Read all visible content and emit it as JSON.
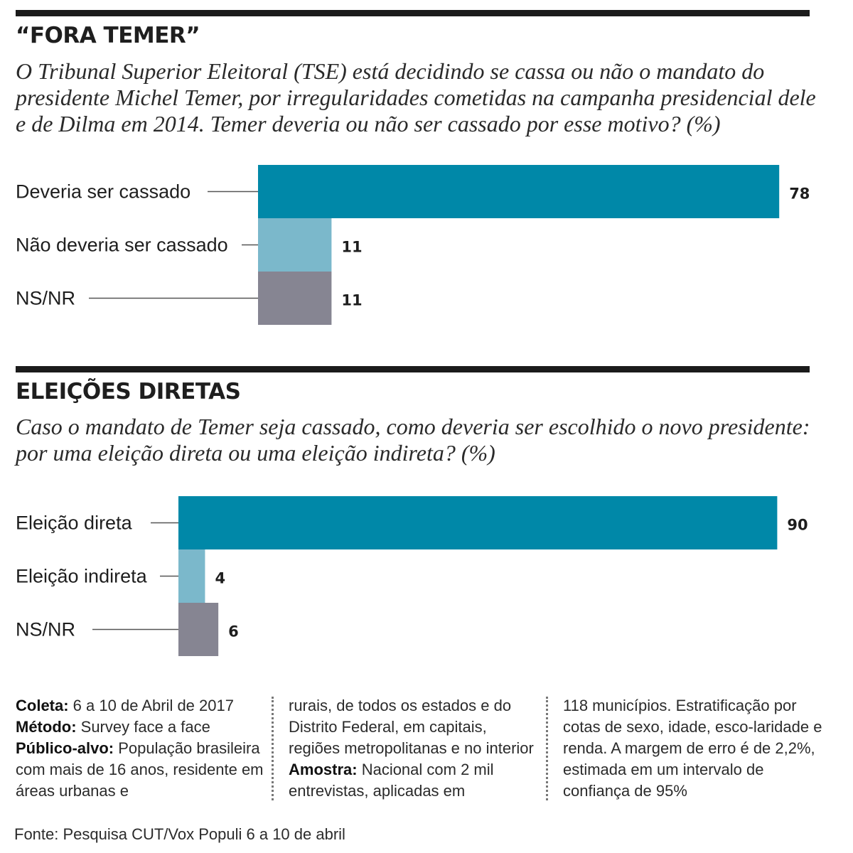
{
  "sections": [
    {
      "title": "“FORA TEMER”",
      "question": "O Tribunal Superior Eleitoral (TSE) está decidindo se cassa ou não o mandato do presidente Michel Temer, por irregularidades cometidas na campanha presidencial dele e de Dilma em 2014.  Temer deveria ou não ser cassado por esse motivo? (%)"
    },
    {
      "title": "ELEIÇÕES DIRETAS",
      "question": "Caso o mandato de Temer seja cassado, como deveria ser escolhido o novo presidente: por uma eleição direta ou uma eleição indireta? (%)"
    }
  ],
  "chart_data": [
    {
      "type": "bar",
      "orientation": "horizontal",
      "categories": [
        "Deveria ser cassado",
        "Não deveria ser cassado",
        "NS/NR"
      ],
      "values": [
        78,
        11,
        11
      ],
      "colors": [
        "#0088a8",
        "#7bb8cb",
        "#868592"
      ]
    },
    {
      "type": "bar",
      "orientation": "horizontal",
      "categories": [
        "Eleição direta",
        "Eleição indireta",
        "NS/NR"
      ],
      "values": [
        90,
        4,
        6
      ],
      "colors": [
        "#0088a8",
        "#7bb8cb",
        "#868592"
      ]
    }
  ],
  "notes": {
    "col1": {
      "label_coleta": "Coleta:",
      "text_coleta": " 6 a 10  de Abril  de 2017 ",
      "label_metodo": "Método:",
      "text_metodo": " Survey face a face ",
      "label_publico": "Público-alvo:",
      "text_publico": " População brasileira com mais de 16 anos, residente em áreas urbanas e"
    },
    "col2": {
      "text_a": "rurais, de todos os estados e do Distrito Federal, em capitais, regiões metropolitanas e no interior ",
      "label_amostra": "Amostra:",
      "text_b": " Nacional com 2 mil entrevistas, aplicadas em"
    },
    "col3": {
      "text": "118  municípios. Estratificação por cotas de sexo, idade, esco-laridade e renda. A margem de erro é de 2,2%, estimada em um intervalo de confiança de 95%"
    }
  },
  "source": "Fonte: Pesquisa CUT/Vox Populi 6 a 10 de abril"
}
